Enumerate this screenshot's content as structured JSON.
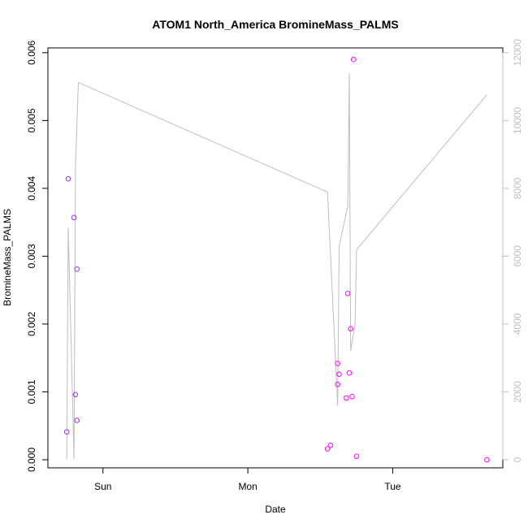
{
  "chart_data": {
    "type": "scatter",
    "title": "ATOM1 North_America BromineMass_PALMS",
    "xlabel": "Date",
    "ylabel": "BromineMass_PALMS",
    "x_ticks": [
      "Sun",
      "Mon",
      "Tue"
    ],
    "x_tick_values": [
      1.0,
      2.0,
      3.0
    ],
    "xlim": [
      0.62,
      3.76
    ],
    "y_ticks": [
      "0.000",
      "0.001",
      "0.002",
      "0.003",
      "0.004",
      "0.005",
      "0.006"
    ],
    "ylim": [
      -0.00012,
      0.00607
    ],
    "y2_ticks": [
      "0",
      "2000",
      "4000",
      "6000",
      "8000",
      "10000",
      "12000"
    ],
    "y2lim": [
      -240,
      12140
    ],
    "grid": false,
    "legend": "none",
    "colors": {
      "early": "#9b30ff",
      "late": "#ff00ff",
      "line": "#bebebe"
    },
    "series": [
      {
        "type": "scatter",
        "axis": "left",
        "points": [
          {
            "x": 0.75,
            "y": 0.00041
          },
          {
            "x": 0.76,
            "y": 0.00414
          },
          {
            "x": 0.8,
            "y": 0.00357
          },
          {
            "x": 0.81,
            "y": 0.00096
          },
          {
            "x": 0.82,
            "y": 0.00058
          },
          {
            "x": 0.82,
            "y": 0.00281
          },
          {
            "x": 2.55,
            "y": 0.00016
          },
          {
            "x": 2.57,
            "y": 0.00021
          },
          {
            "x": 2.62,
            "y": 0.00111
          },
          {
            "x": 2.62,
            "y": 0.00142
          },
          {
            "x": 2.63,
            "y": 0.00126
          },
          {
            "x": 2.68,
            "y": 0.00091
          },
          {
            "x": 2.69,
            "y": 0.00245
          },
          {
            "x": 2.7,
            "y": 0.00128
          },
          {
            "x": 2.71,
            "y": 0.00193
          },
          {
            "x": 2.72,
            "y": 0.00093
          },
          {
            "x": 2.73,
            "y": 0.0059
          },
          {
            "x": 2.75,
            "y": 5e-05
          },
          {
            "x": 3.65,
            "y": 0.0
          }
        ]
      },
      {
        "type": "line",
        "axis": "right",
        "points": [
          {
            "x": 0.75,
            "y": 20
          },
          {
            "x": 0.76,
            "y": 6840
          },
          {
            "x": 0.8,
            "y": 20
          },
          {
            "x": 0.81,
            "y": 8640
          },
          {
            "x": 0.83,
            "y": 11120
          },
          {
            "x": 2.55,
            "y": 7890
          },
          {
            "x": 2.62,
            "y": 1590
          },
          {
            "x": 2.63,
            "y": 6290
          },
          {
            "x": 2.69,
            "y": 7490
          },
          {
            "x": 2.7,
            "y": 11400
          },
          {
            "x": 2.71,
            "y": 3210
          },
          {
            "x": 2.74,
            "y": 3990
          },
          {
            "x": 2.75,
            "y": 6190
          },
          {
            "x": 3.65,
            "y": 10760
          }
        ]
      }
    ]
  }
}
